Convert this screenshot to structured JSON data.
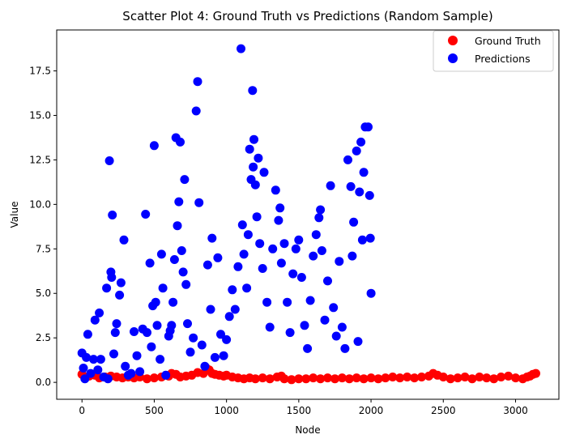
{
  "chart_data": {
    "type": "scatter",
    "title": "Scatter Plot 4: Ground Truth vs Predictions (Random Sample)",
    "xlabel": "Node",
    "ylabel": "Value",
    "xlim": [
      -175,
      3300
    ],
    "ylim": [
      -0.95,
      19.8
    ],
    "xticks": [
      0,
      500,
      1000,
      1500,
      2000,
      2500,
      3000
    ],
    "yticks": [
      0.0,
      2.5,
      5.0,
      7.5,
      10.0,
      12.5,
      15.0,
      17.5
    ],
    "ytick_labels": [
      "0.0",
      "2.5",
      "5.0",
      "7.5",
      "10.0",
      "12.5",
      "15.0",
      "17.5"
    ],
    "legend_position": "top-right",
    "grid": false,
    "series": [
      {
        "name": "Ground Truth",
        "color": "#ff0000",
        "points": [
          [
            0,
            0.45
          ],
          [
            20,
            0.3
          ],
          [
            50,
            0.35
          ],
          [
            90,
            0.4
          ],
          [
            120,
            0.25
          ],
          [
            160,
            0.3
          ],
          [
            200,
            0.35
          ],
          [
            240,
            0.3
          ],
          [
            280,
            0.25
          ],
          [
            320,
            0.3
          ],
          [
            360,
            0.25
          ],
          [
            400,
            0.3
          ],
          [
            450,
            0.2
          ],
          [
            500,
            0.25
          ],
          [
            550,
            0.3
          ],
          [
            600,
            0.35
          ],
          [
            620,
            0.5
          ],
          [
            650,
            0.45
          ],
          [
            680,
            0.3
          ],
          [
            720,
            0.35
          ],
          [
            760,
            0.4
          ],
          [
            800,
            0.55
          ],
          [
            840,
            0.5
          ],
          [
            860,
            0.8
          ],
          [
            880,
            0.7
          ],
          [
            900,
            0.5
          ],
          [
            920,
            0.45
          ],
          [
            950,
            0.4
          ],
          [
            980,
            0.35
          ],
          [
            1000,
            0.4
          ],
          [
            1040,
            0.3
          ],
          [
            1080,
            0.25
          ],
          [
            1120,
            0.2
          ],
          [
            1160,
            0.25
          ],
          [
            1200,
            0.2
          ],
          [
            1250,
            0.25
          ],
          [
            1300,
            0.2
          ],
          [
            1350,
            0.3
          ],
          [
            1380,
            0.35
          ],
          [
            1400,
            0.2
          ],
          [
            1450,
            0.15
          ],
          [
            1500,
            0.2
          ],
          [
            1550,
            0.2
          ],
          [
            1600,
            0.25
          ],
          [
            1650,
            0.2
          ],
          [
            1700,
            0.25
          ],
          [
            1750,
            0.2
          ],
          [
            1800,
            0.25
          ],
          [
            1850,
            0.2
          ],
          [
            1900,
            0.25
          ],
          [
            1950,
            0.2
          ],
          [
            2000,
            0.25
          ],
          [
            2050,
            0.2
          ],
          [
            2100,
            0.25
          ],
          [
            2150,
            0.3
          ],
          [
            2200,
            0.25
          ],
          [
            2250,
            0.3
          ],
          [
            2300,
            0.25
          ],
          [
            2350,
            0.3
          ],
          [
            2400,
            0.35
          ],
          [
            2430,
            0.5
          ],
          [
            2460,
            0.4
          ],
          [
            2500,
            0.3
          ],
          [
            2550,
            0.2
          ],
          [
            2600,
            0.25
          ],
          [
            2650,
            0.3
          ],
          [
            2700,
            0.2
          ],
          [
            2750,
            0.3
          ],
          [
            2800,
            0.25
          ],
          [
            2850,
            0.2
          ],
          [
            2900,
            0.3
          ],
          [
            2950,
            0.35
          ],
          [
            3000,
            0.25
          ],
          [
            3050,
            0.2
          ],
          [
            3080,
            0.3
          ],
          [
            3100,
            0.35
          ],
          [
            3120,
            0.45
          ],
          [
            3140,
            0.5
          ]
        ]
      },
      {
        "name": "Predictions",
        "color": "#0000ff",
        "points": [
          [
            0,
            1.65
          ],
          [
            10,
            0.8
          ],
          [
            20,
            0.2
          ],
          [
            30,
            1.4
          ],
          [
            40,
            2.7
          ],
          [
            60,
            0.5
          ],
          [
            80,
            1.3
          ],
          [
            90,
            3.5
          ],
          [
            110,
            0.7
          ],
          [
            120,
            3.9
          ],
          [
            130,
            1.3
          ],
          [
            150,
            0.3
          ],
          [
            170,
            5.3
          ],
          [
            180,
            0.2
          ],
          [
            190,
            12.45
          ],
          [
            200,
            6.2
          ],
          [
            205,
            5.9
          ],
          [
            210,
            9.4
          ],
          [
            220,
            1.6
          ],
          [
            230,
            2.8
          ],
          [
            240,
            3.3
          ],
          [
            260,
            4.9
          ],
          [
            270,
            5.6
          ],
          [
            290,
            8.0
          ],
          [
            300,
            0.9
          ],
          [
            320,
            0.4
          ],
          [
            340,
            0.5
          ],
          [
            360,
            2.85
          ],
          [
            380,
            1.5
          ],
          [
            400,
            0.6
          ],
          [
            420,
            3.0
          ],
          [
            440,
            9.45
          ],
          [
            450,
            2.8
          ],
          [
            470,
            6.7
          ],
          [
            480,
            2.0
          ],
          [
            490,
            4.3
          ],
          [
            500,
            13.3
          ],
          [
            510,
            4.5
          ],
          [
            520,
            3.2
          ],
          [
            540,
            1.3
          ],
          [
            550,
            7.2
          ],
          [
            560,
            5.3
          ],
          [
            580,
            0.4
          ],
          [
            600,
            2.6
          ],
          [
            610,
            2.9
          ],
          [
            620,
            3.2
          ],
          [
            630,
            4.5
          ],
          [
            640,
            6.9
          ],
          [
            650,
            13.75
          ],
          [
            660,
            8.8
          ],
          [
            670,
            10.15
          ],
          [
            680,
            13.5
          ],
          [
            690,
            7.4
          ],
          [
            700,
            6.2
          ],
          [
            710,
            11.4
          ],
          [
            720,
            5.5
          ],
          [
            730,
            3.3
          ],
          [
            750,
            1.7
          ],
          [
            770,
            2.5
          ],
          [
            790,
            15.25
          ],
          [
            800,
            16.9
          ],
          [
            810,
            10.1
          ],
          [
            830,
            2.1
          ],
          [
            850,
            0.9
          ],
          [
            870,
            6.6
          ],
          [
            890,
            4.1
          ],
          [
            900,
            8.1
          ],
          [
            920,
            1.4
          ],
          [
            940,
            7.0
          ],
          [
            960,
            2.7
          ],
          [
            980,
            1.5
          ],
          [
            1000,
            2.4
          ],
          [
            1020,
            3.7
          ],
          [
            1040,
            5.2
          ],
          [
            1060,
            4.1
          ],
          [
            1080,
            6.5
          ],
          [
            1100,
            18.75
          ],
          [
            1110,
            8.85
          ],
          [
            1120,
            7.2
          ],
          [
            1140,
            5.3
          ],
          [
            1150,
            8.3
          ],
          [
            1160,
            13.1
          ],
          [
            1170,
            11.4
          ],
          [
            1180,
            16.4
          ],
          [
            1185,
            12.1
          ],
          [
            1190,
            13.65
          ],
          [
            1200,
            11.1
          ],
          [
            1210,
            9.3
          ],
          [
            1220,
            12.6
          ],
          [
            1230,
            7.8
          ],
          [
            1250,
            6.4
          ],
          [
            1260,
            11.8
          ],
          [
            1280,
            4.5
          ],
          [
            1300,
            3.1
          ],
          [
            1320,
            7.5
          ],
          [
            1340,
            10.8
          ],
          [
            1360,
            9.1
          ],
          [
            1370,
            9.8
          ],
          [
            1380,
            6.7
          ],
          [
            1400,
            7.8
          ],
          [
            1420,
            4.5
          ],
          [
            1440,
            2.8
          ],
          [
            1460,
            6.1
          ],
          [
            1480,
            7.5
          ],
          [
            1500,
            8.0
          ],
          [
            1520,
            5.9
          ],
          [
            1540,
            3.2
          ],
          [
            1560,
            1.9
          ],
          [
            1580,
            4.6
          ],
          [
            1600,
            7.1
          ],
          [
            1620,
            8.3
          ],
          [
            1640,
            9.25
          ],
          [
            1650,
            9.7
          ],
          [
            1660,
            7.4
          ],
          [
            1680,
            3.5
          ],
          [
            1700,
            5.7
          ],
          [
            1720,
            11.05
          ],
          [
            1740,
            4.2
          ],
          [
            1760,
            2.6
          ],
          [
            1780,
            6.8
          ],
          [
            1800,
            3.1
          ],
          [
            1820,
            1.9
          ],
          [
            1840,
            12.5
          ],
          [
            1860,
            11.0
          ],
          [
            1870,
            7.1
          ],
          [
            1880,
            9.0
          ],
          [
            1900,
            13.0
          ],
          [
            1910,
            2.3
          ],
          [
            1920,
            10.7
          ],
          [
            1930,
            13.5
          ],
          [
            1940,
            8.0
          ],
          [
            1950,
            11.8
          ],
          [
            1960,
            14.35
          ],
          [
            1980,
            14.35
          ],
          [
            1990,
            10.5
          ],
          [
            1995,
            8.1
          ],
          [
            2000,
            5.0
          ]
        ]
      }
    ]
  }
}
